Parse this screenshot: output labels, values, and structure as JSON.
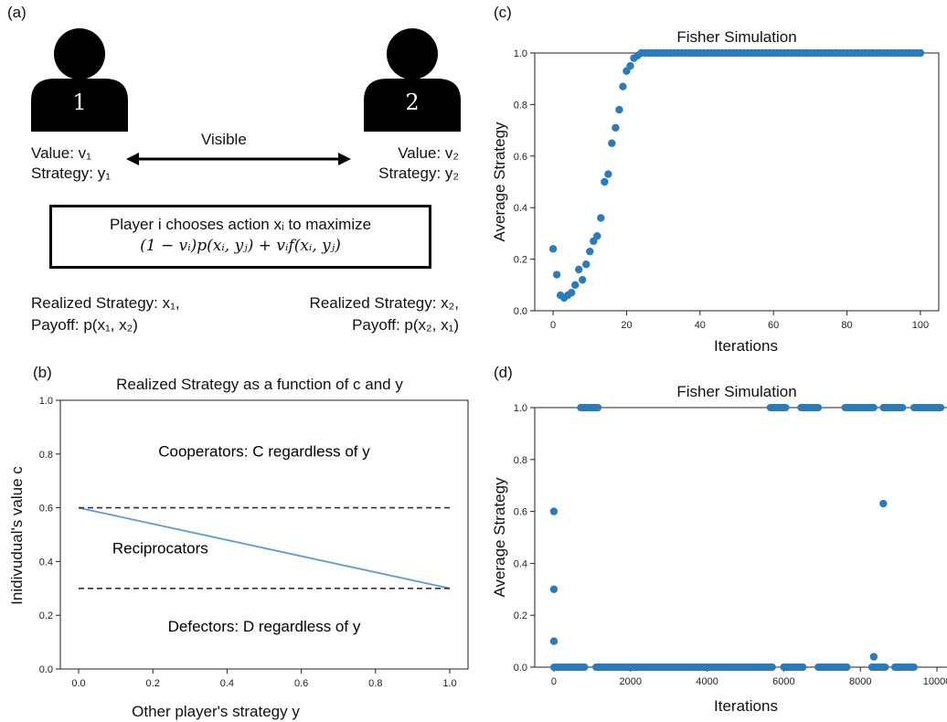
{
  "panel_a": {
    "label": "(a)",
    "player1_number": "1",
    "player2_number": "2",
    "visible_label": "Visible",
    "p1_value": "Value: v₁",
    "p1_strategy": "Strategy: y₁",
    "p2_value": "Value: v₂",
    "p2_strategy": "Strategy: y₂",
    "box_line1": "Player i chooses action xᵢ to maximize",
    "box_line2": "(1 − vᵢ)p(xᵢ, yⱼ) + vᵢf(xᵢ, yⱼ)",
    "p1_realized": "Realized Strategy: x₁,",
    "p1_payoff": "Payoff: p(x₁, x₂)",
    "p2_realized": "Realized Strategy: x₂,",
    "p2_payoff": "Payoff: p(x₂, x₁)"
  },
  "chart_data": [
    {
      "id": "b",
      "panel_label": "(b)",
      "type": "line",
      "title": "Realized Strategy as a function of c and y",
      "xlabel": "Other player's strategy y",
      "ylabel": "Inidivudual's value c",
      "xlim": [
        0,
        1.0
      ],
      "ylim": [
        0,
        1.0
      ],
      "xticks": [
        "0.0",
        "0.2",
        "0.4",
        "0.6",
        "0.8",
        "1.0"
      ],
      "yticks": [
        "0.0",
        "0.2",
        "0.4",
        "0.6",
        "0.8",
        "1.0"
      ],
      "series": [
        {
          "style": "solid",
          "color": "#5b9bd5",
          "x": [
            0,
            1
          ],
          "y": [
            0.6,
            0.3
          ]
        },
        {
          "style": "dashed",
          "color": "#333333",
          "x": [
            0,
            1
          ],
          "y": [
            0.6,
            0.6
          ]
        },
        {
          "style": "dashed",
          "color": "#333333",
          "x": [
            0,
            1
          ],
          "y": [
            0.3,
            0.3
          ]
        }
      ],
      "annotations": [
        {
          "text": "Cooperators: C regardless of y",
          "x": 0.5,
          "y": 0.79
        },
        {
          "text": "Reciprocators",
          "x": 0.22,
          "y": 0.43
        },
        {
          "text": "Defectors: D regardless of y",
          "x": 0.5,
          "y": 0.14
        }
      ]
    },
    {
      "id": "c",
      "panel_label": "(c)",
      "type": "scatter",
      "title": "Fisher Simulation",
      "xlabel": "Iterations",
      "ylabel": "Average Strategy",
      "xlim": [
        -5,
        105
      ],
      "ylim": [
        0,
        1.0
      ],
      "xticks": [
        "0",
        "20",
        "40",
        "60",
        "80",
        "100"
      ],
      "yticks": [
        "0.0",
        "0.2",
        "0.4",
        "0.6",
        "0.8",
        "1.0"
      ],
      "color": "#2b7bba",
      "x": [
        0,
        1,
        2,
        3,
        4,
        5,
        6,
        7,
        8,
        9,
        10,
        11,
        12,
        13,
        14,
        15,
        16,
        17,
        18,
        19,
        20,
        21,
        22,
        23,
        24,
        25,
        26,
        27,
        28,
        29,
        30,
        31,
        32,
        33,
        34,
        35,
        36,
        37,
        38,
        39,
        40,
        41,
        42,
        43,
        44,
        45,
        46,
        47,
        48,
        49,
        50,
        51,
        52,
        53,
        54,
        55,
        56,
        57,
        58,
        59,
        60,
        61,
        62,
        63,
        64,
        65,
        66,
        67,
        68,
        69,
        70,
        71,
        72,
        73,
        74,
        75,
        76,
        77,
        78,
        79,
        80,
        81,
        82,
        83,
        84,
        85,
        86,
        87,
        88,
        89,
        90,
        91,
        92,
        93,
        94,
        95,
        96,
        97,
        98,
        99,
        100
      ],
      "y": [
        0.24,
        0.14,
        0.06,
        0.05,
        0.06,
        0.07,
        0.1,
        0.16,
        0.12,
        0.18,
        0.23,
        0.27,
        0.29,
        0.36,
        0.5,
        0.53,
        0.65,
        0.71,
        0.78,
        0.87,
        0.93,
        0.95,
        0.98,
        0.99,
        1,
        1,
        1,
        1,
        1,
        1,
        1,
        1,
        1,
        1,
        1,
        1,
        1,
        1,
        1,
        1,
        1,
        1,
        1,
        1,
        1,
        1,
        1,
        1,
        1,
        1,
        1,
        1,
        1,
        1,
        1,
        1,
        1,
        1,
        1,
        1,
        1,
        1,
        1,
        1,
        1,
        1,
        1,
        1,
        1,
        1,
        1,
        1,
        1,
        1,
        1,
        1,
        1,
        1,
        1,
        1,
        1,
        1,
        1,
        1,
        1,
        1,
        1,
        1,
        1,
        1,
        1,
        1,
        1,
        1,
        1,
        1,
        1,
        1,
        1,
        1,
        1
      ]
    },
    {
      "id": "d",
      "panel_label": "(d)",
      "type": "scatter",
      "title": "Fisher Simulation",
      "xlabel": "Iterations",
      "ylabel": "Average Strategy",
      "xlim": [
        -500,
        10500
      ],
      "ylim": [
        0,
        1.0
      ],
      "xticks": [
        "0",
        "2000",
        "4000",
        "6000",
        "8000",
        "10000"
      ],
      "yticks": [
        "0.0",
        "0.2",
        "0.4",
        "0.6",
        "0.8",
        "1.0"
      ],
      "color": "#2b7bba",
      "points": [
        [
          0,
          0.6
        ],
        [
          0,
          0.3
        ],
        [
          0,
          0.1
        ],
        [
          8350,
          0.04
        ],
        [
          8600,
          0.63
        ]
      ],
      "runs_at_zero": [
        [
          0,
          800
        ],
        [
          1100,
          5700
        ],
        [
          6000,
          6500
        ],
        [
          6900,
          7650
        ],
        [
          8300,
          8650
        ],
        [
          8900,
          9400
        ]
      ],
      "runs_at_one": [
        [
          700,
          1150
        ],
        [
          5650,
          6050
        ],
        [
          6450,
          6900
        ],
        [
          7600,
          8350
        ],
        [
          8600,
          9100
        ],
        [
          9400,
          10100
        ]
      ]
    }
  ]
}
